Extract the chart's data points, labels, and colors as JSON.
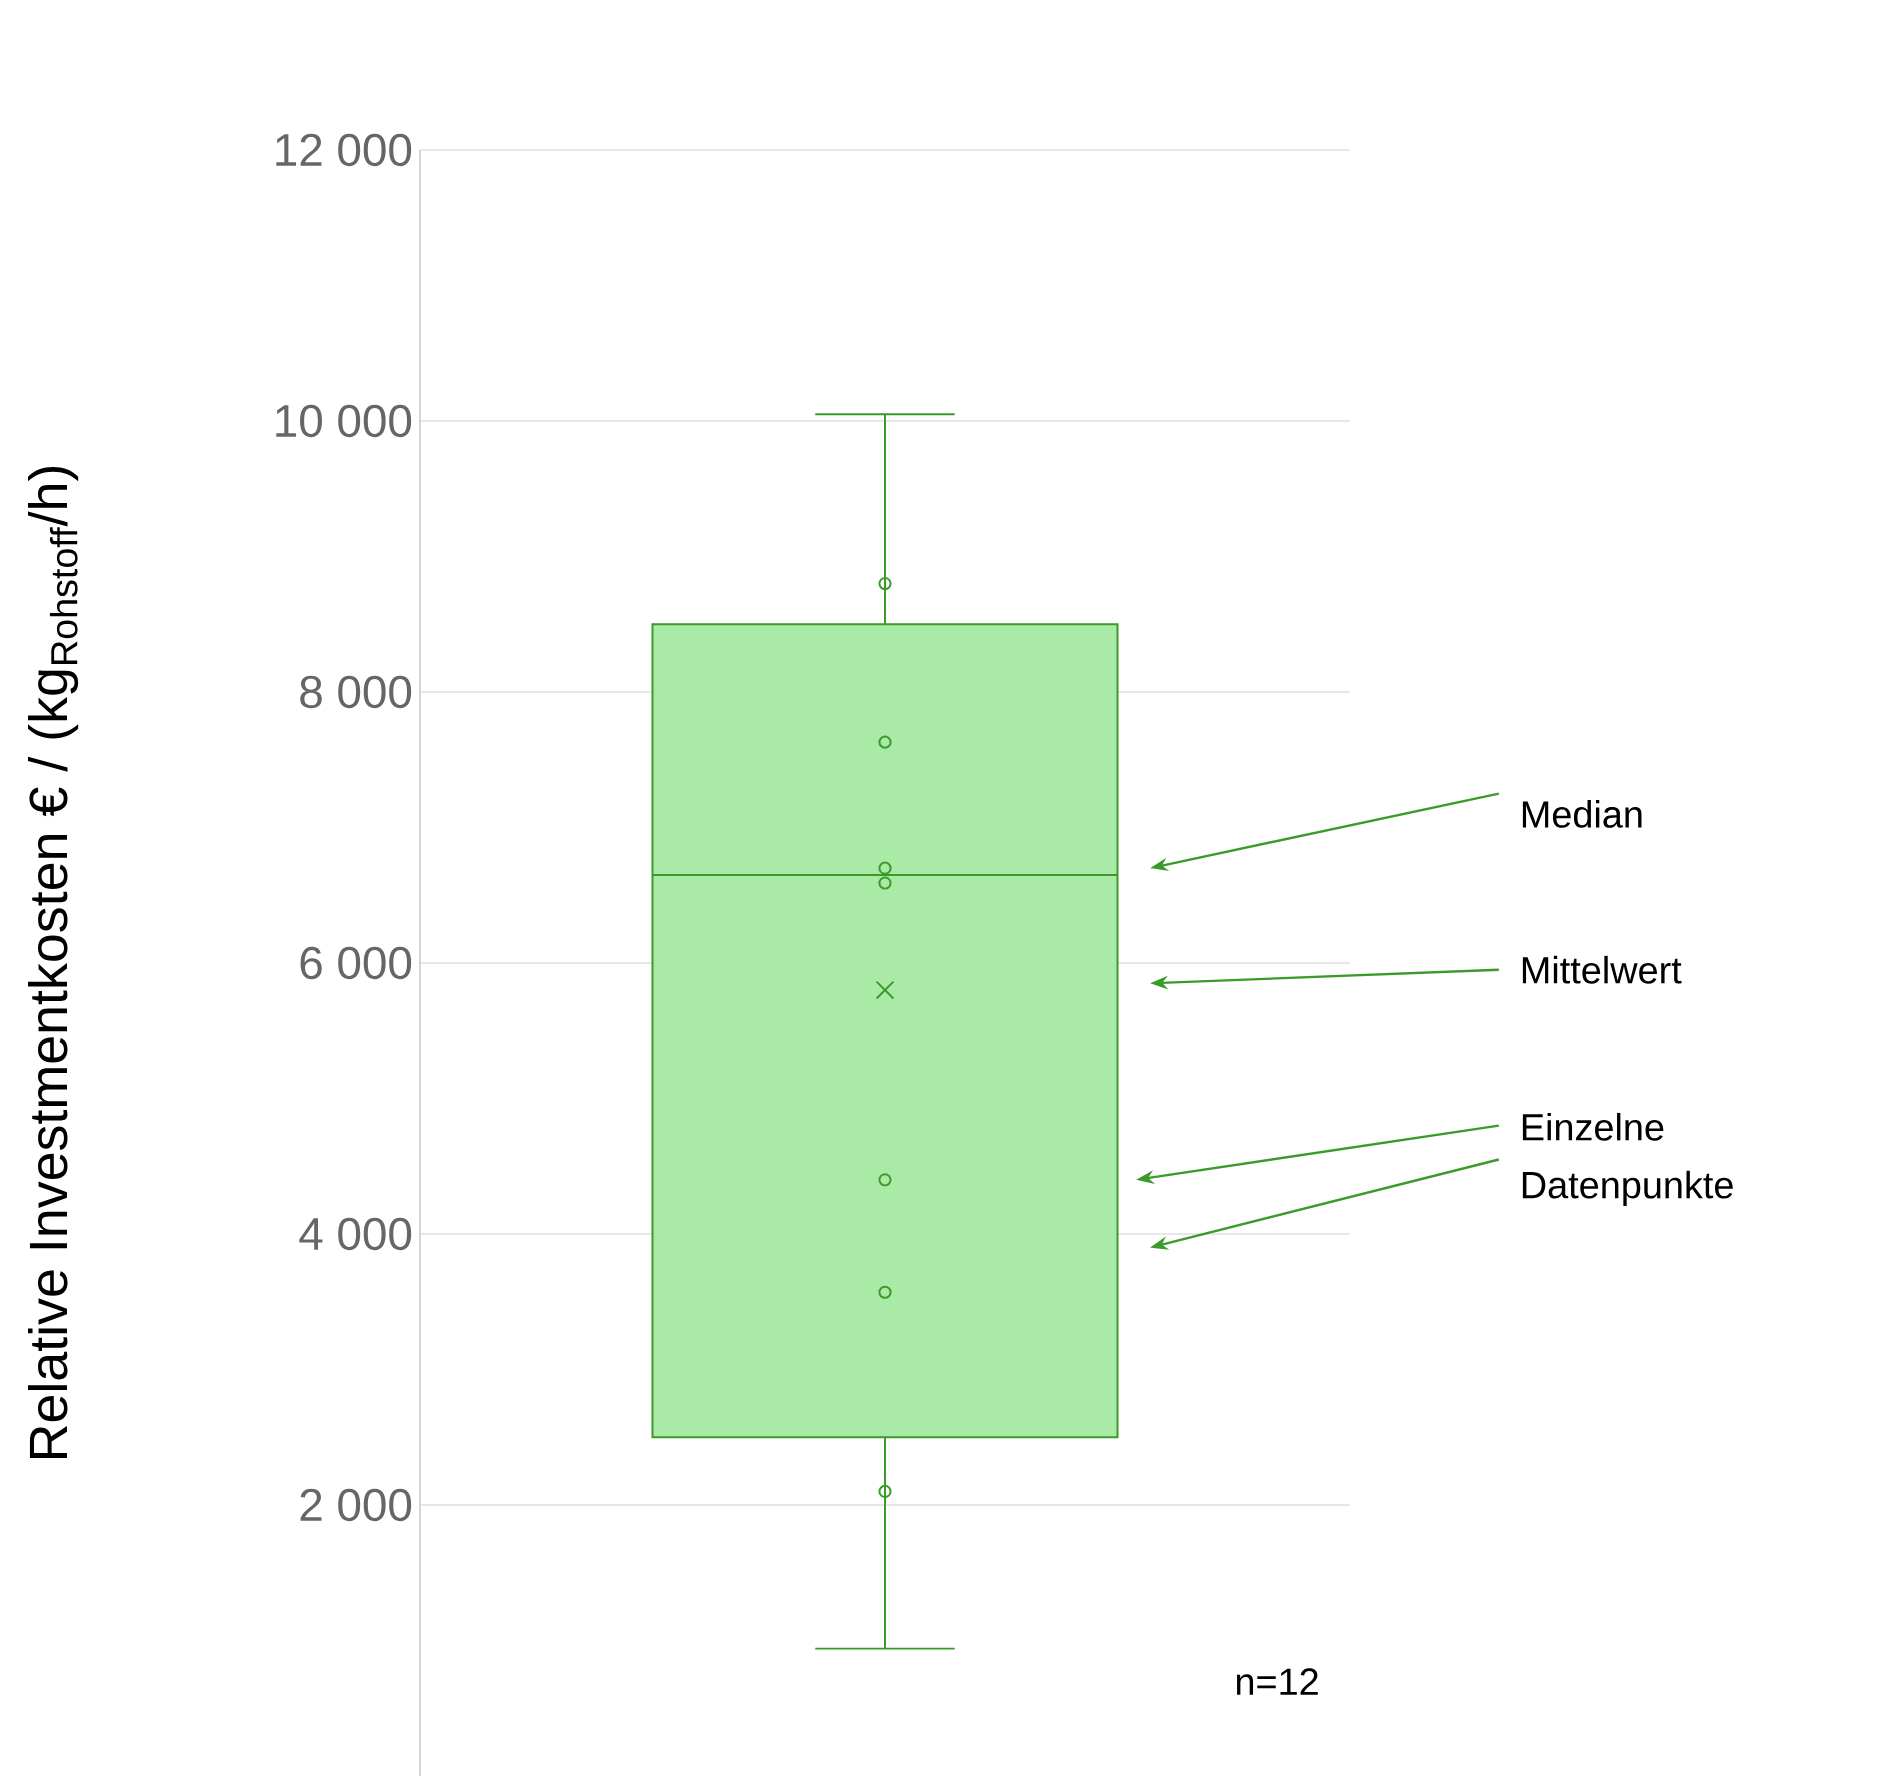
{
  "chart_data": {
    "type": "box",
    "ylabel": "Relative Investmentkosten € / (kg$_{Rohstoff}$/h)",
    "categories": [
      null
    ],
    "boxes": [
      {
        "low": 940,
        "q1": 2500,
        "median": 6650,
        "q3": 8500,
        "high": 10050,
        "mean": 5800,
        "outliers": [
          8800,
          7630,
          6700,
          6590,
          4400,
          3570,
          2100
        ]
      }
    ],
    "color": "#3a9a2a",
    "ylim": [
      0,
      12000
    ],
    "yticks": [
      {
        "value": 2000,
        "label": "2 000"
      },
      {
        "value": 4000,
        "label": "4 000"
      },
      {
        "value": 6000,
        "label": "6 000"
      },
      {
        "value": 8000,
        "label": "8 000"
      },
      {
        "value": 10000,
        "label": "10 000"
      },
      {
        "value": 12000,
        "label": "12 000"
      }
    ],
    "grid": "y",
    "tick_labels": "y",
    "marker": "circle",
    "annotations": [
      "Median",
      "Mittelwert",
      "Einzelne Datenpunkte",
      "n=12"
    ]
  }
}
